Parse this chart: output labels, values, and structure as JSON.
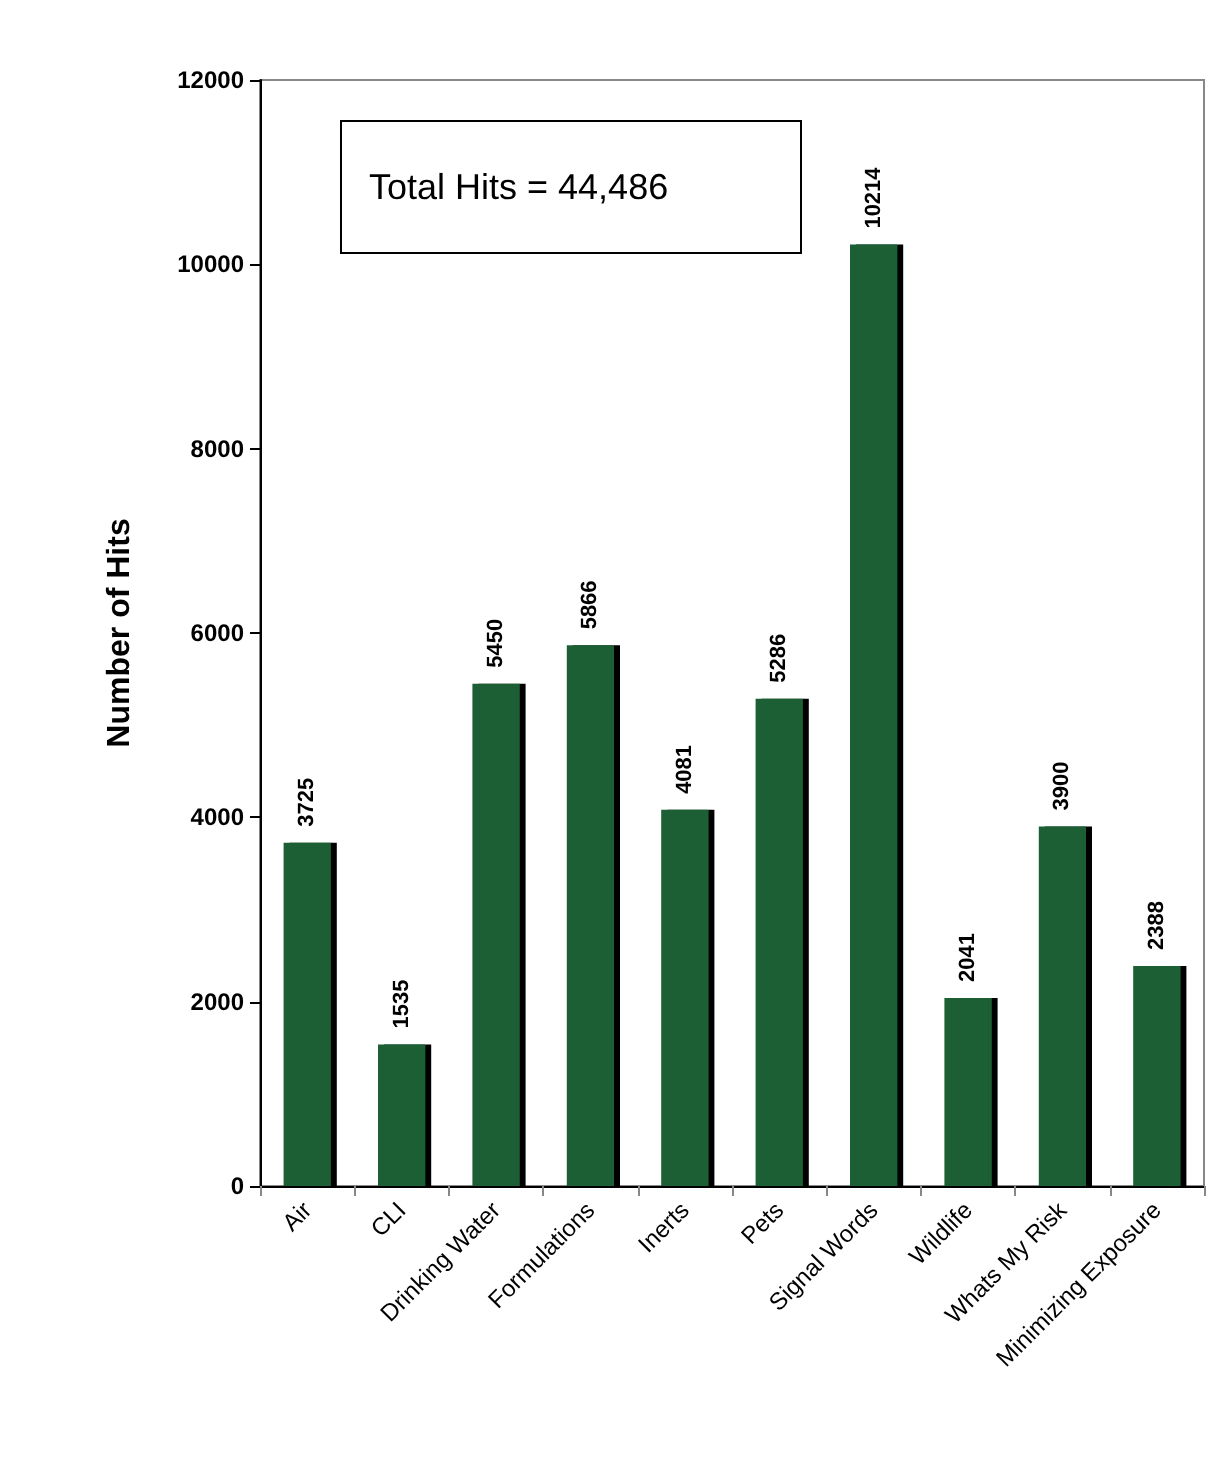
{
  "chart_data": {
    "type": "bar",
    "ylabel": "Number of Hits",
    "categories": [
      "Air",
      "CLI",
      "Drinking Water",
      "Formulations",
      "Inerts",
      "Pets",
      "Signal Words",
      "Wildlife",
      "Whats My Risk",
      "Minimizing Exposure"
    ],
    "values": [
      3725,
      1535,
      5450,
      5866,
      4081,
      5286,
      10214,
      2041,
      3900,
      2388
    ],
    "color": "#1b5e36",
    "ylim": [
      0,
      12000
    ],
    "yticks": [
      0,
      2000,
      4000,
      6000,
      8000,
      10000,
      12000
    ],
    "grid": false,
    "data_labels": true,
    "annotations": [
      "Total Hits = 44,486"
    ]
  }
}
